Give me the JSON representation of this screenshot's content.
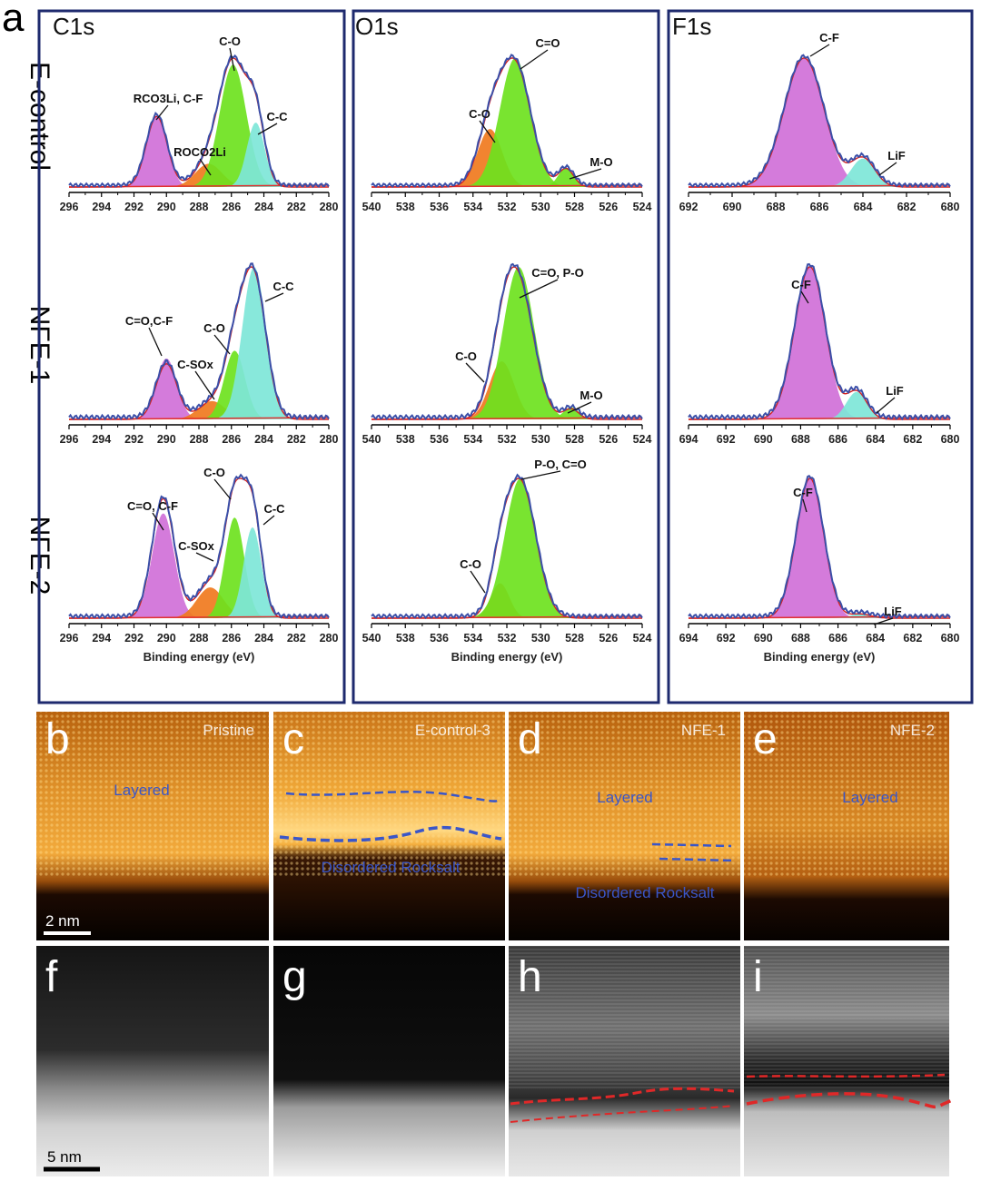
{
  "figure": {
    "panel_a_letter": "a",
    "sample_labels": [
      "E-control",
      "NFE-1",
      "NFE-2"
    ],
    "xlabel": "Binding energy (eV)",
    "column_titles": [
      "C1s",
      "O1s",
      "F1s"
    ]
  },
  "chart_data": [
    {
      "type": "line",
      "element": "C1s",
      "sample": "E-control",
      "title": "C1s",
      "xlabel": "",
      "x_reversed": true,
      "xlim": [
        296,
        280
      ],
      "x_ticks": [
        296,
        294,
        292,
        290,
        288,
        286,
        284,
        282,
        280
      ],
      "fit_peaks": [
        {
          "label": "RCO3Li, C-F",
          "center": 290.6,
          "height": 0.55,
          "width": 0.7,
          "color": "#d070d8"
        },
        {
          "label": "ROCO2Li",
          "center": 287.4,
          "height": 0.18,
          "width": 0.9,
          "color": "#f07a1e"
        },
        {
          "label": "C-O",
          "center": 285.9,
          "height": 0.95,
          "width": 0.9,
          "color": "#6ee21e"
        },
        {
          "label": "C-C",
          "center": 284.5,
          "height": 0.5,
          "width": 0.6,
          "color": "#7ee6d8"
        }
      ]
    },
    {
      "type": "line",
      "element": "O1s",
      "sample": "E-control",
      "title": "O1s",
      "xlabel": "",
      "x_reversed": true,
      "xlim": [
        540,
        524
      ],
      "x_ticks": [
        540,
        538,
        536,
        534,
        532,
        530,
        528,
        526,
        524
      ],
      "fit_peaks": [
        {
          "label": "C-O",
          "center": 533.0,
          "height": 0.45,
          "width": 0.8,
          "color": "#f07a1e"
        },
        {
          "label": "C=O",
          "center": 531.5,
          "height": 1.0,
          "width": 1.0,
          "color": "#6ee21e"
        },
        {
          "label": "M-O",
          "center": 528.5,
          "height": 0.15,
          "width": 0.5,
          "color": "#6ee21e"
        }
      ]
    },
    {
      "type": "line",
      "element": "F1s",
      "sample": "E-control",
      "title": "F1s",
      "xlabel": "",
      "x_reversed": true,
      "xlim": [
        692,
        680
      ],
      "x_ticks": [
        692,
        690,
        688,
        686,
        684,
        682,
        680
      ],
      "fit_peaks": [
        {
          "label": "C-F",
          "center": 686.7,
          "height": 1.0,
          "width": 1.0,
          "color": "#d070d8"
        },
        {
          "label": "LiF",
          "center": 684.0,
          "height": 0.22,
          "width": 0.6,
          "color": "#7ee6d8"
        }
      ]
    },
    {
      "type": "line",
      "element": "C1s",
      "sample": "NFE-1",
      "xlabel": "",
      "x_reversed": true,
      "xlim": [
        296,
        280
      ],
      "x_ticks": [
        296,
        294,
        292,
        290,
        288,
        286,
        284,
        282,
        280
      ],
      "fit_peaks": [
        {
          "label": "C=O,C-F",
          "center": 290.0,
          "height": 0.4,
          "width": 0.7,
          "color": "#d070d8"
        },
        {
          "label": "C-SOx",
          "center": 287.2,
          "height": 0.12,
          "width": 0.9,
          "color": "#f07a1e"
        },
        {
          "label": "C-O",
          "center": 285.8,
          "height": 0.45,
          "width": 0.7,
          "color": "#6ee21e"
        },
        {
          "label": "C-C",
          "center": 284.6,
          "height": 1.0,
          "width": 0.8,
          "color": "#7ee6d8"
        }
      ]
    },
    {
      "type": "line",
      "element": "O1s",
      "sample": "NFE-1",
      "xlabel": "",
      "x_reversed": true,
      "xlim": [
        540,
        524
      ],
      "x_ticks": [
        540,
        538,
        536,
        534,
        532,
        530,
        528,
        526,
        524
      ],
      "fit_peaks": [
        {
          "label": "C-O",
          "center": 532.3,
          "height": 0.38,
          "width": 0.8,
          "color": "#f07a1e"
        },
        {
          "label": "C=O, P-O",
          "center": 531.3,
          "height": 1.0,
          "width": 1.0,
          "color": "#6ee21e"
        },
        {
          "label": "M-O",
          "center": 528.2,
          "height": 0.08,
          "width": 0.5,
          "color": "#6ee21e"
        }
      ]
    },
    {
      "type": "line",
      "element": "F1s",
      "sample": "NFE-1",
      "xlabel": "",
      "x_reversed": true,
      "xlim": [
        694,
        680
      ],
      "x_ticks": [
        694,
        692,
        690,
        688,
        686,
        684,
        682,
        680
      ],
      "fit_peaks": [
        {
          "label": "C-F",
          "center": 687.5,
          "height": 1.0,
          "width": 0.9,
          "color": "#d070d8"
        },
        {
          "label": "LiF",
          "center": 685.0,
          "height": 0.18,
          "width": 0.6,
          "color": "#7ee6d8"
        }
      ]
    },
    {
      "type": "line",
      "element": "C1s",
      "sample": "NFE-2",
      "xlabel": "Binding energy (eV)",
      "x_reversed": true,
      "xlim": [
        296,
        280
      ],
      "x_ticks": [
        296,
        294,
        292,
        290,
        288,
        286,
        284,
        282,
        280
      ],
      "fit_peaks": [
        {
          "label": "C=O, C-F",
          "center": 290.2,
          "height": 0.75,
          "width": 0.75,
          "color": "#d070d8"
        },
        {
          "label": "C-SOx",
          "center": 287.3,
          "height": 0.22,
          "width": 0.9,
          "color": "#f07a1e"
        },
        {
          "label": "C-O",
          "center": 285.8,
          "height": 0.72,
          "width": 0.65,
          "color": "#6ee21e"
        },
        {
          "label": "C-C",
          "center": 284.7,
          "height": 0.65,
          "width": 0.6,
          "color": "#7ee6d8"
        }
      ]
    },
    {
      "type": "line",
      "element": "O1s",
      "sample": "NFE-2",
      "xlabel": "Binding energy (eV)",
      "x_reversed": true,
      "xlim": [
        540,
        524
      ],
      "x_ticks": [
        540,
        538,
        536,
        534,
        532,
        530,
        528,
        526,
        524
      ],
      "fit_peaks": [
        {
          "label": "C-O",
          "center": 532.4,
          "height": 0.25,
          "width": 0.6,
          "color": "#f07a1e"
        },
        {
          "label": "P-O, C=O",
          "center": 531.2,
          "height": 1.0,
          "width": 1.0,
          "color": "#6ee21e"
        }
      ]
    },
    {
      "type": "line",
      "element": "F1s",
      "sample": "NFE-2",
      "xlabel": "Binding energy (eV)",
      "x_reversed": true,
      "xlim": [
        694,
        680
      ],
      "x_ticks": [
        694,
        692,
        690,
        688,
        686,
        684,
        682,
        680
      ],
      "fit_peaks": [
        {
          "label": "C-F",
          "center": 687.5,
          "height": 1.0,
          "width": 0.8,
          "color": "#d070d8"
        },
        {
          "label": "LiF",
          "center": 684.8,
          "height": 0.03,
          "width": 0.6,
          "color": "#7ee6d8"
        }
      ]
    }
  ],
  "micrographs": {
    "haadf": [
      {
        "letter": "b",
        "caption": "Pristine",
        "labels": [
          "Layered"
        ],
        "scale_bar": "2 nm",
        "dashed_boundary": "none"
      },
      {
        "letter": "c",
        "caption": "E-control-3",
        "labels": [
          "Disordered Rocksalt"
        ],
        "dashed_boundary": "blue"
      },
      {
        "letter": "d",
        "caption": "NFE-1",
        "labels": [
          "Layered",
          "Disordered Rocksalt"
        ],
        "dashed_boundary": "blue"
      },
      {
        "letter": "e",
        "caption": "NFE-2",
        "labels": [
          "Layered"
        ],
        "dashed_boundary": "none"
      }
    ],
    "bright_field": [
      {
        "letter": "f",
        "scale_bar": "5 nm",
        "dashed_boundary": "none"
      },
      {
        "letter": "g",
        "dashed_boundary": "none"
      },
      {
        "letter": "h",
        "dashed_boundary": "red"
      },
      {
        "letter": "i",
        "dashed_boundary": "red"
      }
    ]
  },
  "colors": {
    "frame": "#1e2a6e",
    "measured": "#3b4fa8",
    "residual": "#d42020",
    "background_line": "#e23030",
    "annotation": "#3a56c8",
    "boundary_red": "#e02828"
  }
}
